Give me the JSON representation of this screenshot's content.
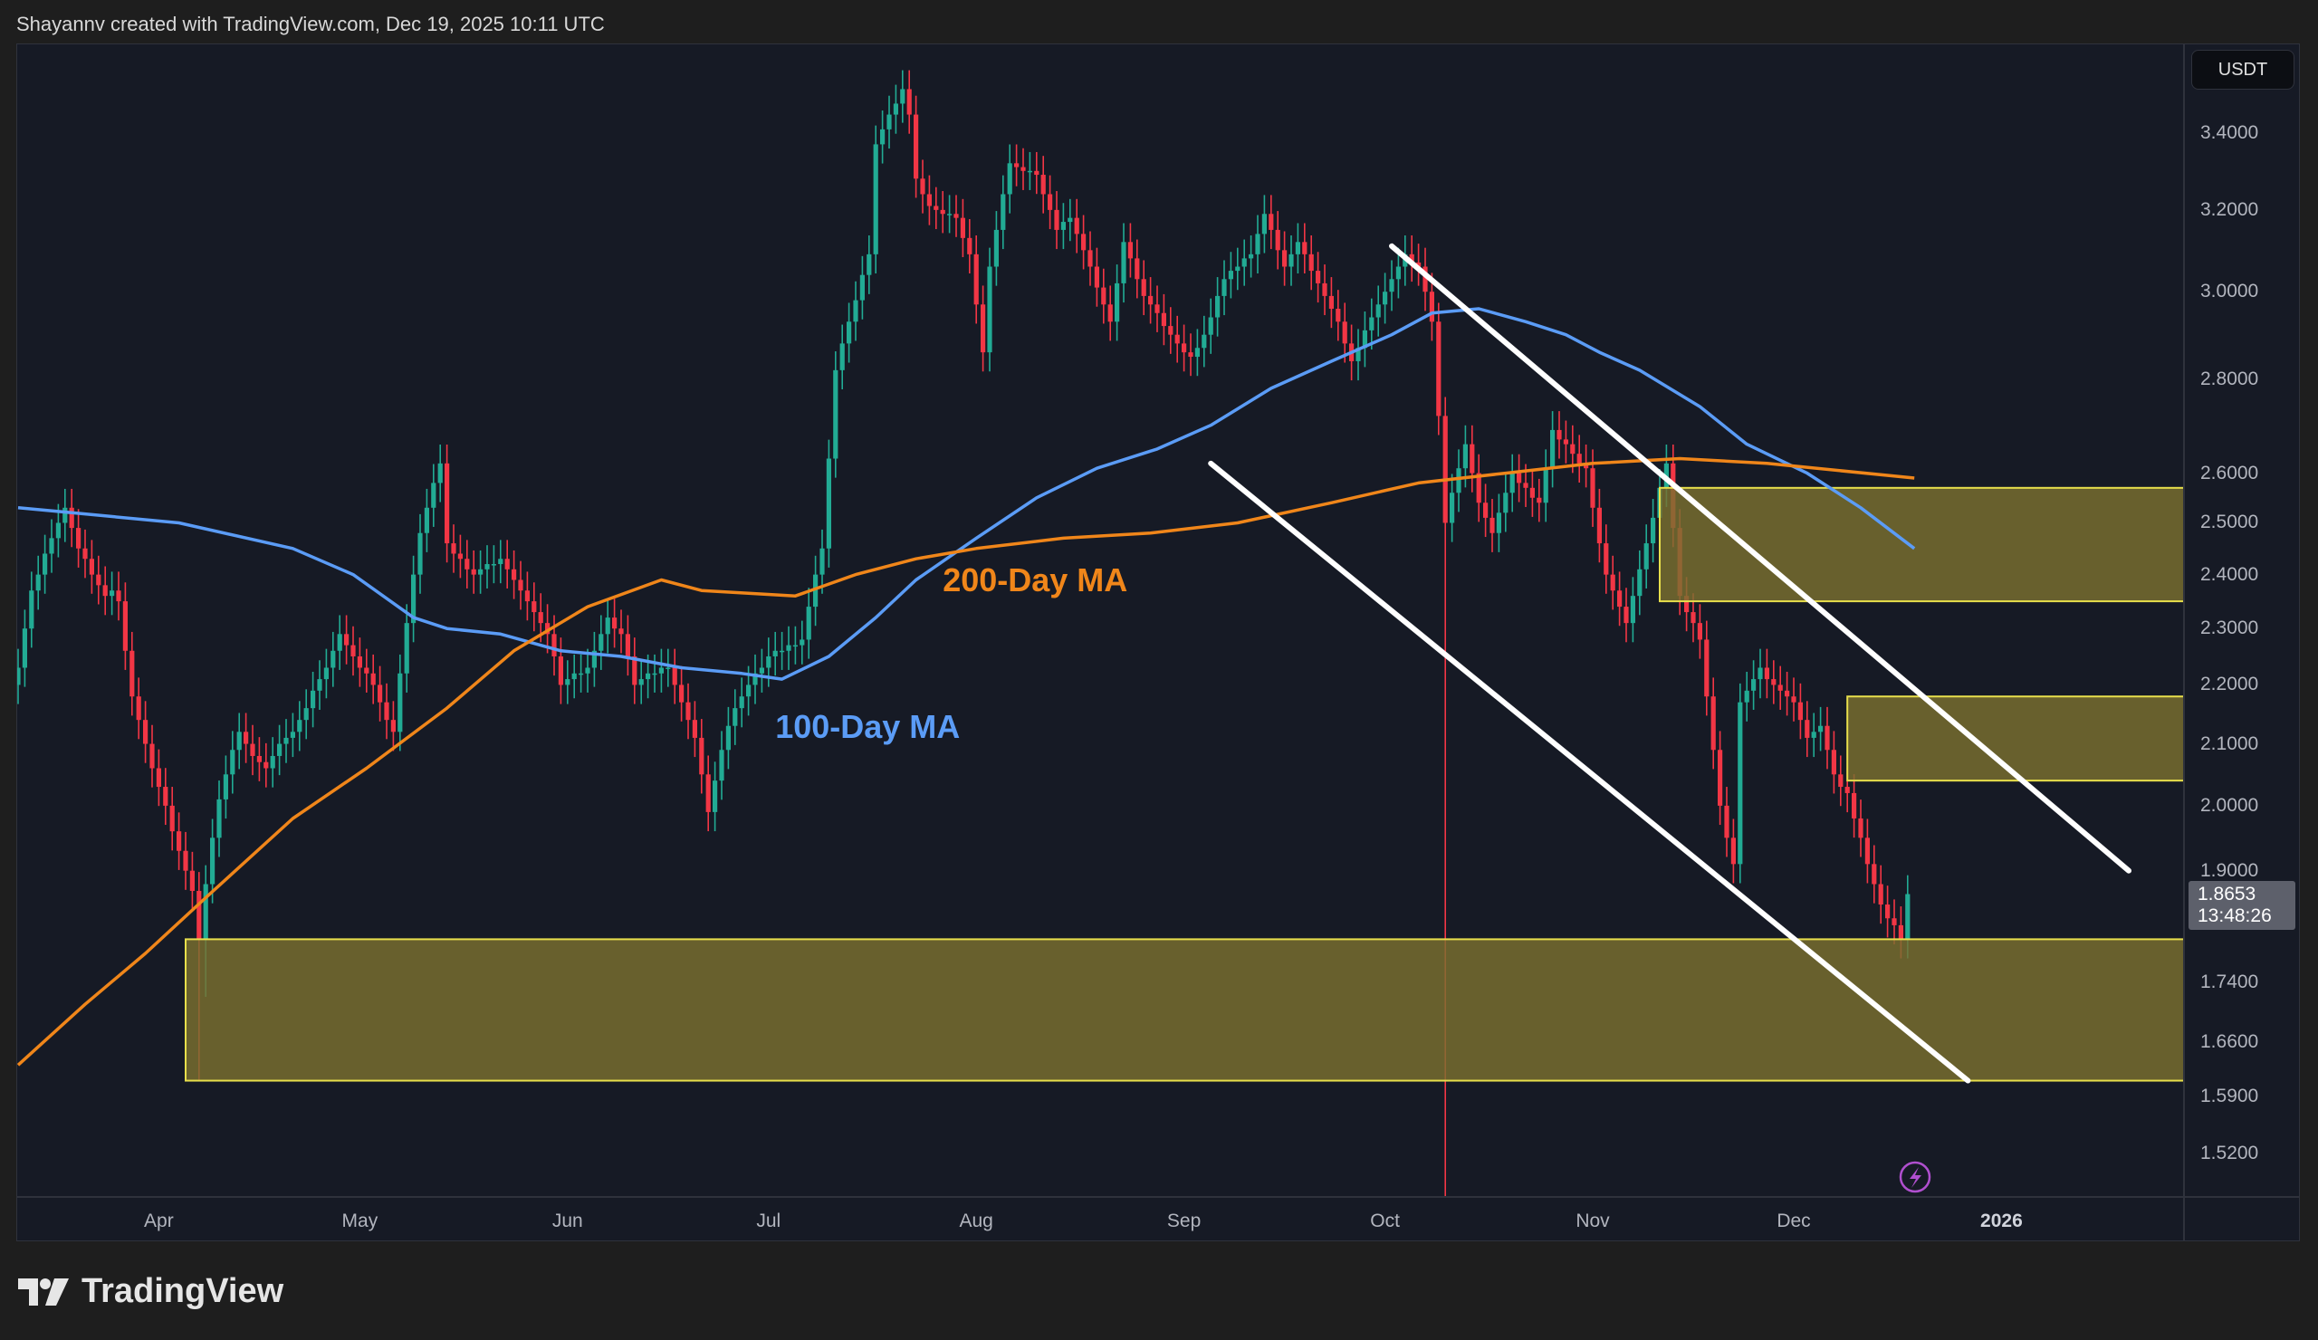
{
  "header": {
    "attribution": "Shayannv created with TradingView.com, Dec 19, 2025 10:11 UTC"
  },
  "currency_button": "USDT",
  "logo_text": "TradingView",
  "price_tag": {
    "price": "1.8653",
    "countdown": "13:48:26"
  },
  "colors": {
    "up": "#22ab94",
    "down": "#f23645",
    "ma100": "#5b9cf6",
    "ma200": "#f0861a",
    "zone_fill": "#7a7030",
    "zone_border": "#e8df4c",
    "trendline": "#ffffff",
    "background": "#161a25"
  },
  "chart_data": {
    "type": "candlestick",
    "y_scale": "log",
    "ylim": [
      1.48,
      3.6
    ],
    "grid": false,
    "y_ticks": [
      "3.4000",
      "3.2000",
      "3.0000",
      "2.8000",
      "2.6000",
      "2.5000",
      "2.4000",
      "2.3000",
      "2.2000",
      "2.1000",
      "2.0000",
      "1.9000",
      "1.7400",
      "1.6600",
      "1.5900",
      "1.5200"
    ],
    "x_ticks": [
      {
        "label": "Apr",
        "date": "2025-04-01"
      },
      {
        "label": "May",
        "date": "2025-05-01"
      },
      {
        "label": "Jun",
        "date": "2025-06-01"
      },
      {
        "label": "Jul",
        "date": "2025-07-01"
      },
      {
        "label": "Aug",
        "date": "2025-08-01"
      },
      {
        "label": "Sep",
        "date": "2025-09-01"
      },
      {
        "label": "Oct",
        "date": "2025-10-01"
      },
      {
        "label": "Nov",
        "date": "2025-11-01"
      },
      {
        "label": "Dec",
        "date": "2025-12-01"
      },
      {
        "label": "2026",
        "date": "2026-01-01",
        "bold": true
      }
    ],
    "candles": {
      "start_date": "2025-03-11",
      "first_open": 2.2,
      "closes": [
        2.23,
        2.3,
        2.37,
        2.4,
        2.44,
        2.47,
        2.5,
        2.53,
        2.49,
        2.45,
        2.43,
        2.4,
        2.38,
        2.36,
        2.37,
        2.35,
        2.26,
        2.18,
        2.14,
        2.1,
        2.06,
        2.03,
        2.0,
        1.96,
        1.93,
        1.9,
        1.87,
        1.8,
        1.88,
        1.95,
        2.01,
        2.05,
        2.09,
        2.12,
        2.1,
        2.08,
        2.07,
        2.06,
        2.08,
        2.1,
        2.11,
        2.12,
        2.14,
        2.16,
        2.19,
        2.21,
        2.23,
        2.26,
        2.29,
        2.27,
        2.25,
        2.23,
        2.22,
        2.2,
        2.17,
        2.14,
        2.12,
        2.22,
        2.31,
        2.4,
        2.48,
        2.53,
        2.58,
        2.62,
        2.46,
        2.44,
        2.43,
        2.41,
        2.4,
        2.41,
        2.42,
        2.42,
        2.43,
        2.41,
        2.39,
        2.37,
        2.35,
        2.33,
        2.31,
        2.29,
        2.25,
        2.2,
        2.21,
        2.22,
        2.22,
        2.23,
        2.26,
        2.29,
        2.32,
        2.3,
        2.29,
        2.25,
        2.2,
        2.21,
        2.22,
        2.22,
        2.23,
        2.23,
        2.2,
        2.17,
        2.14,
        2.11,
        2.05,
        1.99,
        2.04,
        2.09,
        2.13,
        2.16,
        2.18,
        2.2,
        2.22,
        2.23,
        2.25,
        2.26,
        2.26,
        2.27,
        2.27,
        2.28,
        2.34,
        2.4,
        2.45,
        2.63,
        2.82,
        2.88,
        2.93,
        2.98,
        3.04,
        3.09,
        3.37,
        3.41,
        3.45,
        3.48,
        3.52,
        3.45,
        3.28,
        3.24,
        3.21,
        3.2,
        3.19,
        3.19,
        3.18,
        3.13,
        3.09,
        2.97,
        2.86,
        3.06,
        3.15,
        3.24,
        3.32,
        3.31,
        3.3,
        3.3,
        3.29,
        3.24,
        3.2,
        3.15,
        3.17,
        3.18,
        3.14,
        3.1,
        3.06,
        3.01,
        2.97,
        2.93,
        3.02,
        3.12,
        3.08,
        3.03,
        2.99,
        2.97,
        2.95,
        2.92,
        2.9,
        2.88,
        2.86,
        2.85,
        2.87,
        2.9,
        2.94,
        2.99,
        3.03,
        3.05,
        3.06,
        3.08,
        3.09,
        3.14,
        3.19,
        3.15,
        3.1,
        3.06,
        3.09,
        3.12,
        3.09,
        3.05,
        3.02,
        2.99,
        2.96,
        2.93,
        2.88,
        2.84,
        2.87,
        2.91,
        2.94,
        2.97,
        3.0,
        3.03,
        3.06,
        3.09,
        3.07,
        3.06,
        3.0,
        2.93,
        2.72,
        2.5,
        2.56,
        2.61,
        2.66,
        2.6,
        2.54,
        2.51,
        2.48,
        2.52,
        2.56,
        2.6,
        2.58,
        2.57,
        2.55,
        2.54,
        2.61,
        2.69,
        2.67,
        2.66,
        2.64,
        2.62,
        2.61,
        2.53,
        2.46,
        2.4,
        2.37,
        2.34,
        2.31,
        2.36,
        2.41,
        2.46,
        2.51,
        2.57,
        2.62,
        2.49,
        2.36,
        2.33,
        2.31,
        2.28,
        2.18,
        2.09,
        2.0,
        1.95,
        1.91,
        2.17,
        2.19,
        2.21,
        2.23,
        2.21,
        2.2,
        2.19,
        2.18,
        2.17,
        2.14,
        2.11,
        2.12,
        2.13,
        2.09,
        2.05,
        2.03,
        2.02,
        1.98,
        1.95,
        1.91,
        1.88,
        1.85,
        1.83,
        1.82,
        1.8,
        1.8653
      ],
      "low_overrides": [
        {
          "date": "2025-04-07",
          "low": 1.61
        },
        {
          "date": "2025-04-08",
          "low": 1.72
        },
        {
          "date": "2025-10-10",
          "low": 1.25
        },
        {
          "date": "2025-12-19",
          "low": 1.77
        }
      ]
    },
    "moving_averages": [
      {
        "name": "100-Day MA",
        "color_key": "ma100",
        "points": [
          [
            "2025-03-11",
            2.53
          ],
          [
            "2025-03-19",
            2.52
          ],
          [
            "2025-04-04",
            2.5
          ],
          [
            "2025-04-21",
            2.45
          ],
          [
            "2025-04-30",
            2.4
          ],
          [
            "2025-05-09",
            2.32
          ],
          [
            "2025-05-14",
            2.3
          ],
          [
            "2025-05-22",
            2.29
          ],
          [
            "2025-05-31",
            2.26
          ],
          [
            "2025-06-09",
            2.25
          ],
          [
            "2025-06-18",
            2.23
          ],
          [
            "2025-06-27",
            2.22
          ],
          [
            "2025-07-03",
            2.21
          ],
          [
            "2025-07-10",
            2.25
          ],
          [
            "2025-07-17",
            2.32
          ],
          [
            "2025-07-23",
            2.39
          ],
          [
            "2025-08-01",
            2.47
          ],
          [
            "2025-08-10",
            2.55
          ],
          [
            "2025-08-19",
            2.61
          ],
          [
            "2025-08-28",
            2.65
          ],
          [
            "2025-09-05",
            2.7
          ],
          [
            "2025-09-14",
            2.78
          ],
          [
            "2025-09-23",
            2.84
          ],
          [
            "2025-10-02",
            2.9
          ],
          [
            "2025-10-08",
            2.95
          ],
          [
            "2025-10-15",
            2.96
          ],
          [
            "2025-10-22",
            2.93
          ],
          [
            "2025-10-28",
            2.9
          ],
          [
            "2025-11-02",
            2.86
          ],
          [
            "2025-11-08",
            2.82
          ],
          [
            "2025-11-17",
            2.74
          ],
          [
            "2025-11-24",
            2.66
          ],
          [
            "2025-12-03",
            2.6
          ],
          [
            "2025-12-11",
            2.53
          ],
          [
            "2025-12-19",
            2.45
          ]
        ]
      },
      {
        "name": "200-Day MA",
        "color_key": "ma200",
        "points": [
          [
            "2025-03-11",
            1.63
          ],
          [
            "2025-03-21",
            1.71
          ],
          [
            "2025-03-30",
            1.78
          ],
          [
            "2025-04-08",
            1.86
          ],
          [
            "2025-04-21",
            1.98
          ],
          [
            "2025-05-02",
            2.06
          ],
          [
            "2025-05-14",
            2.16
          ],
          [
            "2025-05-24",
            2.26
          ],
          [
            "2025-06-04",
            2.34
          ],
          [
            "2025-06-15",
            2.39
          ],
          [
            "2025-06-21",
            2.37
          ],
          [
            "2025-07-05",
            2.36
          ],
          [
            "2025-07-14",
            2.4
          ],
          [
            "2025-07-23",
            2.43
          ],
          [
            "2025-08-01",
            2.45
          ],
          [
            "2025-08-14",
            2.47
          ],
          [
            "2025-08-27",
            2.48
          ],
          [
            "2025-09-09",
            2.5
          ],
          [
            "2025-09-23",
            2.54
          ],
          [
            "2025-10-06",
            2.58
          ],
          [
            "2025-10-19",
            2.6
          ],
          [
            "2025-11-01",
            2.62
          ],
          [
            "2025-11-14",
            2.63
          ],
          [
            "2025-11-27",
            2.62
          ],
          [
            "2025-12-19",
            2.59
          ]
        ]
      }
    ],
    "annotations": {
      "ma200_label": {
        "text": "200-Day MA",
        "date": "2025-07-27",
        "price": 2.39
      },
      "ma100_label": {
        "text": "100-Day MA",
        "date": "2025-07-02",
        "price": 2.13
      },
      "zones": [
        {
          "from_date": "2025-04-05",
          "top": 1.8,
          "bottom": 1.61
        },
        {
          "from_date": "2025-11-11",
          "top": 2.57,
          "bottom": 2.35
        },
        {
          "from_date": "2025-12-09",
          "top": 2.18,
          "bottom": 2.04
        }
      ],
      "trendlines": [
        {
          "from": [
            "2025-10-02",
            3.11
          ],
          "to": [
            "2026-01-20",
            1.9
          ]
        },
        {
          "from": [
            "2025-09-05",
            2.62
          ],
          "to": [
            "2025-12-27",
            1.61
          ]
        }
      ]
    }
  }
}
